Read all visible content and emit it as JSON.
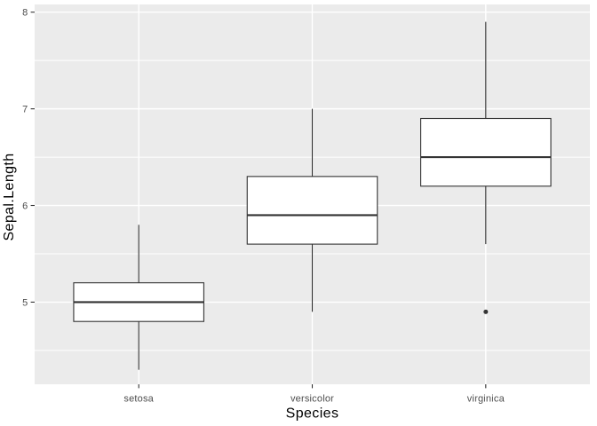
{
  "chart_data": {
    "type": "boxplot",
    "title": "",
    "xlabel": "Species",
    "ylabel": "Sepal.Length",
    "categories": [
      "setosa",
      "versicolor",
      "virginica"
    ],
    "series": [
      {
        "category": "setosa",
        "whisker_low": 4.3,
        "q1": 4.8,
        "median": 5.0,
        "q3": 5.2,
        "whisker_high": 5.8,
        "outliers": []
      },
      {
        "category": "versicolor",
        "whisker_low": 4.9,
        "q1": 5.6,
        "median": 5.9,
        "q3": 6.3,
        "whisker_high": 7.0,
        "outliers": []
      },
      {
        "category": "virginica",
        "whisker_low": 5.6,
        "q1": 6.2,
        "median": 6.5,
        "q3": 6.9,
        "whisker_high": 7.9,
        "outliers": [
          4.9
        ]
      }
    ],
    "y_axis": {
      "ticks": [
        5,
        6,
        7,
        8
      ],
      "minor_ticks": [
        4.5,
        5.5,
        6.5,
        7.5
      ],
      "lim": [
        4.15,
        8.08
      ]
    },
    "grid": "major+minor",
    "legend": false,
    "colors": {
      "figure_background": "#FFFFFF",
      "panel_background": "#EBEBEB",
      "grid_line": "#FFFFFF",
      "box_fill": "#FFFFFF",
      "box_stroke": "#333333",
      "median_stroke": "#333333",
      "outlier": "#333333",
      "tick_mark": "#333333",
      "tick_label": "#4D4D4D",
      "axis_title": "#000000"
    }
  }
}
